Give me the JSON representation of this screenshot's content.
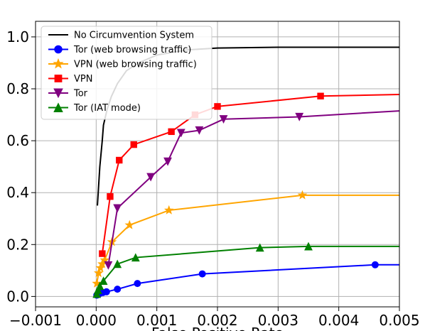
{
  "chart_data": {
    "type": "line",
    "xlabel": "False Positive Rate",
    "ylabel": "",
    "title": "",
    "xlim": [
      -0.001,
      0.005
    ],
    "ylim": [
      -0.04,
      1.06
    ],
    "grid": true,
    "legend_position": "top-left",
    "xticks": [
      -0.001,
      0.0,
      0.001,
      0.002,
      0.003,
      0.004,
      0.005
    ],
    "xtick_labels": [
      "−0.001",
      "0.000",
      "0.001",
      "0.002",
      "0.003",
      "0.004",
      "0.005"
    ],
    "yticks": [
      0.0,
      0.2,
      0.4,
      0.6,
      0.8,
      1.0
    ],
    "ytick_labels": [
      "0.0",
      "0.2",
      "0.4",
      "0.6",
      "0.8",
      "1.0"
    ],
    "series": [
      {
        "name": "No Circumvention System",
        "color": "#000000",
        "marker": "none",
        "points": [
          [
            2e-05,
            0.35
          ],
          [
            6e-05,
            0.5
          ],
          [
            0.0001,
            0.6
          ],
          [
            0.00012,
            0.66
          ],
          [
            0.00018,
            0.72
          ],
          [
            0.00025,
            0.77
          ],
          [
            0.00035,
            0.82
          ],
          [
            0.0005,
            0.87
          ],
          [
            0.0007,
            0.9
          ],
          [
            0.001,
            0.93
          ],
          [
            0.0015,
            0.95
          ],
          [
            0.002,
            0.957
          ],
          [
            0.003,
            0.96
          ],
          [
            0.005,
            0.96
          ]
        ]
      },
      {
        "name": "Tor (web browsing traffic)",
        "color": "#0000ff",
        "marker": "circle",
        "points": [
          [
            1e-05,
            0.005
          ],
          [
            5e-05,
            0.01
          ],
          [
            0.00011,
            0.015
          ],
          [
            0.00017,
            0.018
          ],
          [
            0.00035,
            0.028
          ],
          [
            0.00068,
            0.05
          ],
          [
            0.00175,
            0.087
          ],
          [
            0.0046,
            0.122
          ],
          [
            0.005,
            0.122
          ]
        ]
      },
      {
        "name": "VPN (web browsing traffic)",
        "color": "#ffa500",
        "marker": "star",
        "points": [
          [
            1e-05,
            0.05
          ],
          [
            4e-05,
            0.09
          ],
          [
            7e-05,
            0.11
          ],
          [
            0.0001,
            0.125
          ],
          [
            0.00014,
            0.14
          ],
          [
            0.00026,
            0.21
          ],
          [
            0.00055,
            0.275
          ],
          [
            0.0012,
            0.332
          ],
          [
            0.0034,
            0.39
          ],
          [
            0.005,
            0.39
          ]
        ]
      },
      {
        "name": "VPN",
        "color": "#ff0000",
        "marker": "square",
        "points": [
          [
            0.0001,
            0.165
          ],
          [
            0.00023,
            0.385
          ],
          [
            0.00038,
            0.525
          ],
          [
            0.00062,
            0.585
          ],
          [
            0.00124,
            0.635
          ],
          [
            0.00163,
            0.7
          ],
          [
            0.002,
            0.732
          ],
          [
            0.0037,
            0.772
          ],
          [
            0.005,
            0.778
          ]
        ]
      },
      {
        "name": "Tor",
        "color": "#800080",
        "marker": "triangle-down",
        "points": [
          [
            0.0002,
            0.12
          ],
          [
            0.00035,
            0.34
          ],
          [
            0.0009,
            0.46
          ],
          [
            0.00118,
            0.52
          ],
          [
            0.0014,
            0.63
          ],
          [
            0.0017,
            0.64
          ],
          [
            0.0021,
            0.683
          ],
          [
            0.00335,
            0.692
          ],
          [
            0.005,
            0.715
          ]
        ]
      },
      {
        "name": "Tor (IAT mode)",
        "color": "#008000",
        "marker": "triangle-up",
        "points": [
          [
            1e-05,
            0.01
          ],
          [
            3e-05,
            0.025
          ],
          [
            6e-05,
            0.04
          ],
          [
            0.00012,
            0.06
          ],
          [
            0.00035,
            0.125
          ],
          [
            0.00065,
            0.15
          ],
          [
            0.0027,
            0.188
          ],
          [
            0.0035,
            0.193
          ],
          [
            0.005,
            0.193
          ]
        ]
      }
    ]
  }
}
